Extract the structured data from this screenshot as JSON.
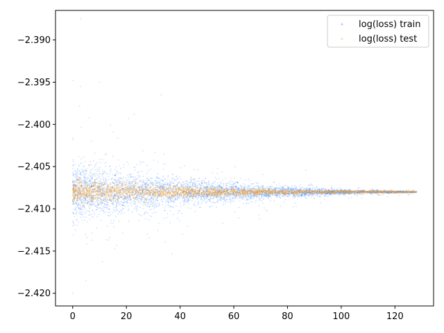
{
  "chart_data": {
    "type": "scatter",
    "title": "",
    "xlabel": "",
    "ylabel": "",
    "xlim": [
      -6.4,
      134.4
    ],
    "ylim": [
      -2.4215,
      -2.3865
    ],
    "x_ticks": [
      0,
      20,
      40,
      60,
      80,
      100,
      120
    ],
    "x_tick_labels": [
      "0",
      "20",
      "40",
      "60",
      "80",
      "100",
      "120"
    ],
    "y_ticks": [
      -2.42,
      -2.415,
      -2.41,
      -2.405,
      -2.4,
      -2.395,
      -2.39
    ],
    "y_tick_labels": [
      "−2.420",
      "−2.415",
      "−2.410",
      "−2.405",
      "−2.400",
      "−2.395",
      "−2.390"
    ],
    "grid": false,
    "legend_position": "top-right",
    "center_value": -2.408,
    "series": [
      {
        "name": "log(loss) train",
        "color": "#1a75ff",
        "x_range": [
          0,
          128
        ],
        "center": -2.408,
        "spread_at_start": 0.0028,
        "spread_at_end": 0.0001,
        "outlier_examples": [
          {
            "x": 3,
            "y": -2.3875
          },
          {
            "x": 3,
            "y": -2.3955
          },
          {
            "x": 10,
            "y": -2.395
          },
          {
            "x": 33,
            "y": -2.3965
          },
          {
            "x": 5,
            "y": -2.4185
          },
          {
            "x": 0,
            "y": -2.42
          }
        ]
      },
      {
        "name": "log(loss) test",
        "color": "#ff9e1a",
        "x_range": [
          0,
          128
        ],
        "center": -2.408,
        "spread_at_start": 0.0012,
        "spread_at_end": 5e-05
      }
    ]
  }
}
